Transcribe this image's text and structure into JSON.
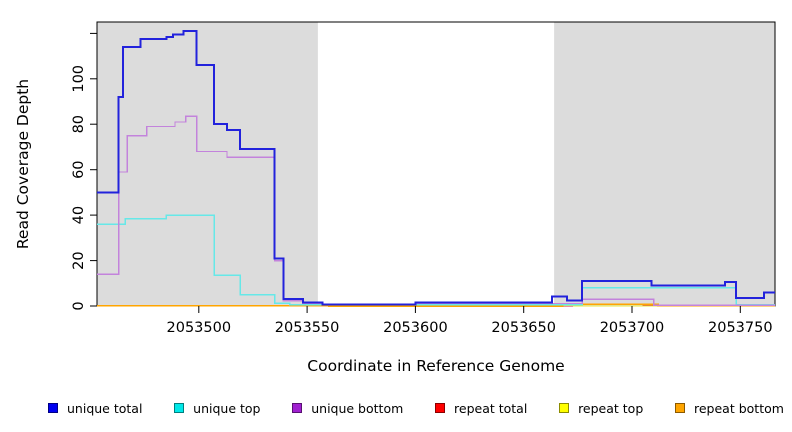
{
  "figure": {
    "background": "#ffffff",
    "shade_color": "#dcdcdc",
    "frame_color": "#000000",
    "tick_color": "#000000",
    "text_color": "#000000"
  },
  "chart_data": {
    "type": "line",
    "title": "",
    "xlabel": "Coordinate in Reference Genome",
    "ylabel": "Read Coverage Depth",
    "xlim": [
      2053453,
      2053766
    ],
    "ylim": [
      0,
      125
    ],
    "grid": false,
    "legend_position": "bottom",
    "x_ticks": [
      {
        "v": 2053500,
        "label": "2053500"
      },
      {
        "v": 2053550,
        "label": "2053550"
      },
      {
        "v": 2053600,
        "label": "2053600"
      },
      {
        "v": 2053650,
        "label": "2053650"
      },
      {
        "v": 2053700,
        "label": "2053700"
      },
      {
        "v": 2053750,
        "label": "2053750"
      }
    ],
    "y_ticks": [
      {
        "v": 0,
        "label": "0"
      },
      {
        "v": 20,
        "label": "20"
      },
      {
        "v": 40,
        "label": "40"
      },
      {
        "v": 60,
        "label": "60"
      },
      {
        "v": 80,
        "label": "80"
      },
      {
        "v": 100,
        "label": "100"
      },
      {
        "v": 120,
        "label": ""
      }
    ],
    "shaded_regions": [
      [
        2053453,
        2053555
      ],
      [
        2053664,
        2053766
      ]
    ],
    "series": [
      {
        "name": "repeat total",
        "color": "#dd2238",
        "width": 1.3,
        "points": [
          [
            2053453,
            0
          ],
          [
            2053705,
            0.3
          ]
        ]
      },
      {
        "name": "repeat top",
        "color": "#e9e93e",
        "width": 1.3,
        "points": [
          [
            2053453,
            0
          ],
          [
            2053545,
            0.3
          ],
          [
            2053673,
            0
          ]
        ]
      },
      {
        "name": "repeat bottom",
        "color": "#ffa500",
        "width": 1.6,
        "points": [
          [
            2053453,
            0.05
          ],
          [
            2053560,
            0
          ],
          [
            2053668,
            0.7
          ],
          [
            2053712,
            0.15
          ]
        ]
      },
      {
        "name": "unique top",
        "color": "#66e8e8",
        "width": 1.5,
        "points": [
          [
            2053453,
            36
          ],
          [
            2053466,
            38.5
          ],
          [
            2053485,
            40
          ],
          [
            2053507,
            13.5
          ],
          [
            2053519,
            5
          ],
          [
            2053535,
            1.3
          ],
          [
            2053542,
            0.55
          ],
          [
            2053677,
            8
          ],
          [
            2053748,
            0.55
          ]
        ]
      },
      {
        "name": "unique bottom",
        "color": "#c383dc",
        "width": 1.4,
        "points": [
          [
            2053453,
            14
          ],
          [
            2053463,
            59
          ],
          [
            2053467,
            75
          ],
          [
            2053476,
            79
          ],
          [
            2053489,
            81
          ],
          [
            2053494,
            83.5
          ],
          [
            2053499,
            68
          ],
          [
            2053513,
            65.5
          ],
          [
            2053535,
            20
          ],
          [
            2053539,
            2.3
          ],
          [
            2053548,
            1.1
          ],
          [
            2053557,
            0.45
          ],
          [
            2053600,
            1.1
          ],
          [
            2053677,
            3
          ],
          [
            2053710,
            0.4
          ]
        ]
      },
      {
        "name": "unique total",
        "color": "#2222dc",
        "width": 2,
        "points": [
          [
            2053453,
            50
          ],
          [
            2053463,
            92
          ],
          [
            2053465,
            114
          ],
          [
            2053473,
            117.5
          ],
          [
            2053485,
            118.5
          ],
          [
            2053488,
            119.5
          ],
          [
            2053493,
            121
          ],
          [
            2053499,
            106
          ],
          [
            2053507,
            80
          ],
          [
            2053513,
            77.5
          ],
          [
            2053519,
            69
          ],
          [
            2053535,
            21
          ],
          [
            2053539,
            3
          ],
          [
            2053548,
            1.6
          ],
          [
            2053557,
            0.7
          ],
          [
            2053600,
            1.6
          ],
          [
            2053663,
            4.2
          ],
          [
            2053670,
            2.5
          ],
          [
            2053677,
            11
          ],
          [
            2053709,
            9
          ],
          [
            2053743,
            10.5
          ],
          [
            2053748,
            3.5
          ],
          [
            2053761,
            6
          ]
        ]
      }
    ],
    "legend": {
      "items": [
        {
          "label": "unique total",
          "swatch": "#0000f0"
        },
        {
          "label": "unique top",
          "swatch": "#00e8e8"
        },
        {
          "label": "unique bottom",
          "swatch": "#a020d0"
        },
        {
          "label": "repeat total",
          "swatch": "#ff0000"
        },
        {
          "label": "repeat top",
          "swatch": "#ffff00"
        },
        {
          "label": "repeat bottom",
          "swatch": "#ffa500"
        }
      ]
    }
  }
}
